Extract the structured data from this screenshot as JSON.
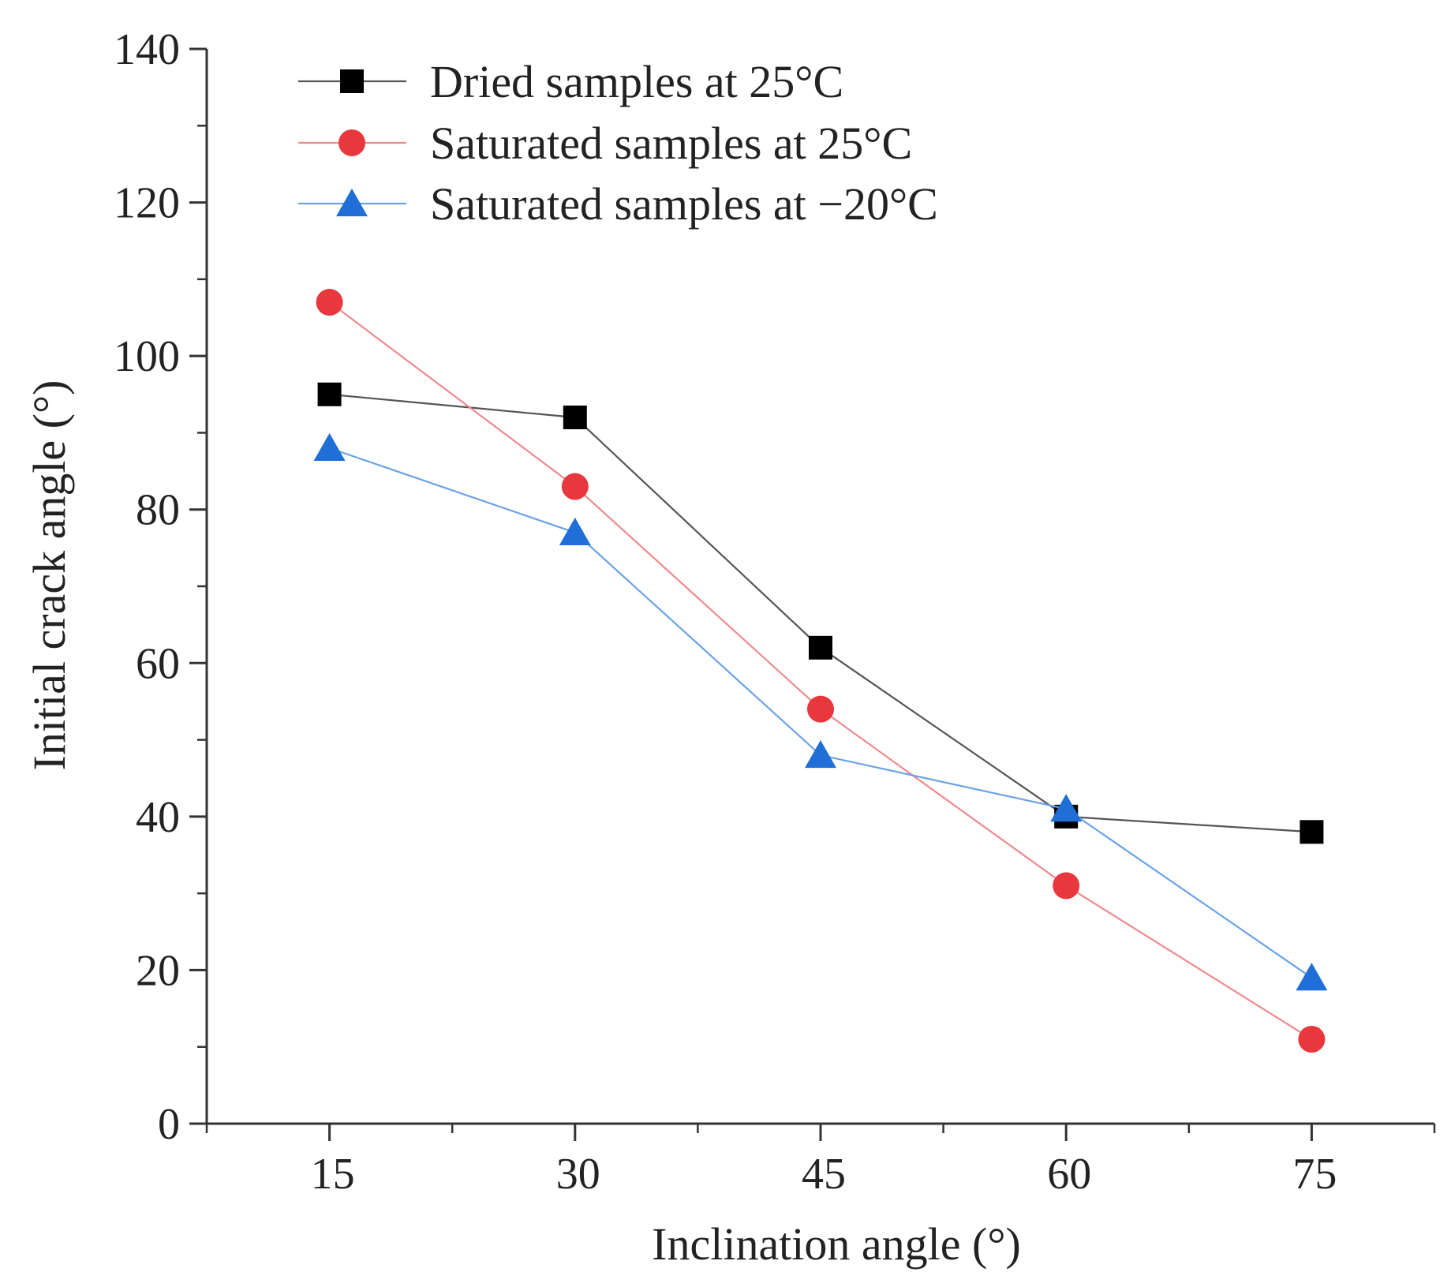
{
  "chart_data": {
    "type": "line",
    "title": "",
    "xlabel": "Inclination angle (°)",
    "ylabel": "Initial crack angle (°)",
    "x": [
      15,
      30,
      45,
      60,
      75
    ],
    "xticks": [
      "15",
      "30",
      "45",
      "60",
      "75"
    ],
    "xlim": [
      7.5,
      82.5
    ],
    "ylim": [
      0,
      140
    ],
    "yticks": [
      "0",
      "20",
      "40",
      "60",
      "80",
      "100",
      "120",
      "140"
    ],
    "grid": false,
    "legend_position": "top-left",
    "series": [
      {
        "name": "Dried samples at 25°C",
        "values": [
          95,
          92,
          62,
          40,
          38
        ],
        "marker": "square",
        "color": "#000000",
        "line_color": "#555555"
      },
      {
        "name": "Saturated samples at 25°C",
        "values": [
          107,
          83,
          54,
          31,
          11
        ],
        "marker": "circle",
        "color": "#e8383d",
        "line_color": "#f08a8d"
      },
      {
        "name": "Saturated samples at −20°C",
        "values": [
          88,
          77,
          48,
          41,
          19
        ],
        "marker": "triangle",
        "color": "#1f6fd6",
        "line_color": "#6aa3e6"
      }
    ]
  }
}
